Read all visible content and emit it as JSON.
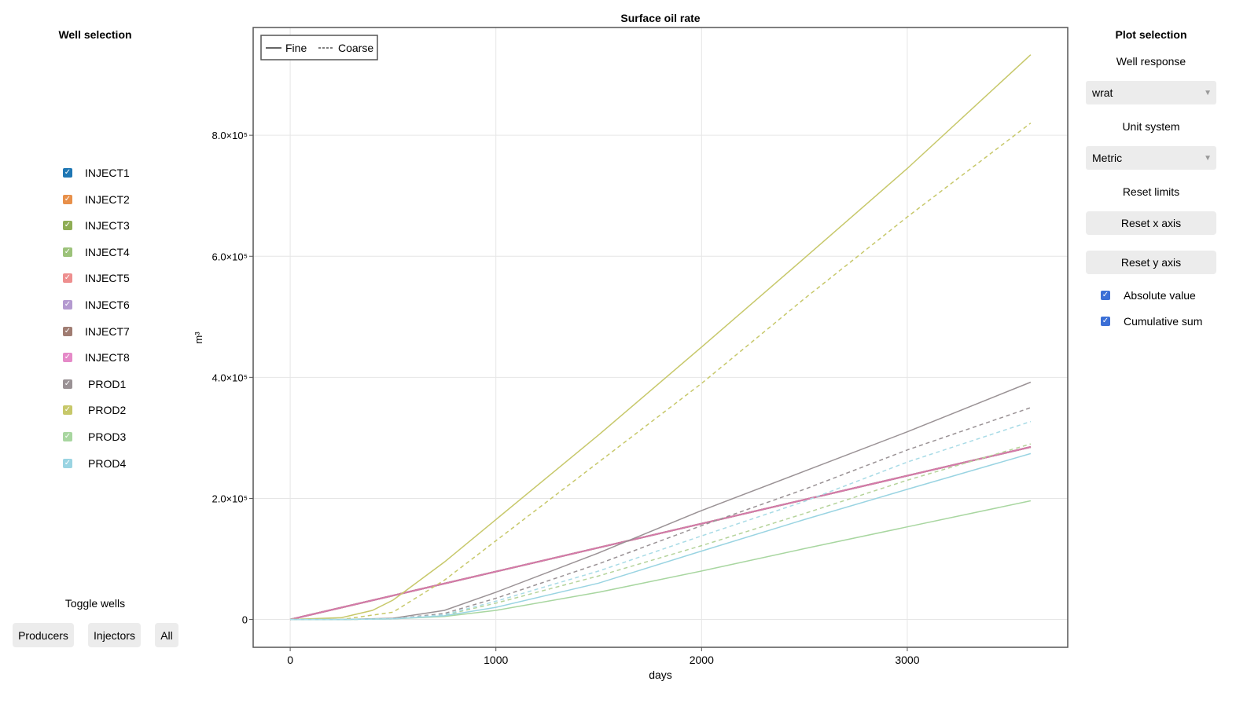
{
  "left_panel": {
    "title": "Well selection",
    "wells": [
      {
        "label": "INJECT1",
        "color": "#1f77b4",
        "checked": true
      },
      {
        "label": "INJECT2",
        "color": "#e8904a",
        "checked": true
      },
      {
        "label": "INJECT3",
        "color": "#8fad55",
        "checked": true
      },
      {
        "label": "INJECT4",
        "color": "#9cc27a",
        "checked": true
      },
      {
        "label": "INJECT5",
        "color": "#ee8f8f",
        "checked": true
      },
      {
        "label": "INJECT6",
        "color": "#b49ad0",
        "checked": true
      },
      {
        "label": "INJECT7",
        "color": "#a07c72",
        "checked": true
      },
      {
        "label": "INJECT8",
        "color": "#e58ac8",
        "checked": true
      },
      {
        "label": "PROD1",
        "color": "#9a9295",
        "checked": true
      },
      {
        "label": "PROD2",
        "color": "#c7c86a",
        "checked": true
      },
      {
        "label": "PROD3",
        "color": "#a8d6a0",
        "checked": true
      },
      {
        "label": "PROD4",
        "color": "#9ad4e2",
        "checked": true
      }
    ],
    "toggle_title": "Toggle wells",
    "buttons": [
      "Producers",
      "Injectors",
      "All"
    ]
  },
  "right_panel": {
    "title": "Plot selection",
    "well_response_label": "Well response",
    "well_response_value": "wrat",
    "unit_system_label": "Unit system",
    "unit_system_value": "Metric",
    "reset_limits_label": "Reset limits",
    "reset_x": "Reset x axis",
    "reset_y": "Reset y axis",
    "absolute_value": {
      "label": "Absolute value",
      "checked": true
    },
    "cumulative_sum": {
      "label": "Cumulative sum",
      "checked": true
    }
  },
  "chart_data": {
    "type": "line",
    "title": "Surface oil rate",
    "xlabel": "days",
    "ylabel": "m³",
    "xlim": [
      -180,
      3780
    ],
    "ylim": [
      -46000,
      978000
    ],
    "xticks": [
      0,
      1000,
      2000,
      3000
    ],
    "xtick_labels": [
      "0",
      "1000",
      "2000",
      "3000"
    ],
    "yticks": [
      0,
      200000,
      400000,
      600000,
      800000
    ],
    "ytick_labels": [
      "0",
      "2.0×10⁵",
      "4.0×10⁵",
      "6.0×10⁵",
      "8.0×10⁵"
    ],
    "grid": true,
    "legend": {
      "placement": "top-left",
      "entries": [
        {
          "label": "Fine",
          "style": "solid"
        },
        {
          "label": "Coarse",
          "style": "dashed"
        }
      ]
    },
    "series": [
      {
        "well": "INJECT1",
        "style": "solid",
        "color": "#1f77b4",
        "points": [
          [
            0,
            0
          ],
          [
            3600,
            285000
          ]
        ]
      },
      {
        "well": "INJECT2",
        "style": "solid",
        "color": "#e8904a",
        "points": [
          [
            0,
            0
          ],
          [
            3600,
            285000
          ]
        ]
      },
      {
        "well": "INJECT3",
        "style": "solid",
        "color": "#8fad55",
        "points": [
          [
            0,
            0
          ],
          [
            3600,
            285000
          ]
        ]
      },
      {
        "well": "INJECT4",
        "style": "solid",
        "color": "#9cc27a",
        "points": [
          [
            0,
            0
          ],
          [
            3600,
            285000
          ]
        ]
      },
      {
        "well": "INJECT5",
        "style": "solid",
        "color": "#ee8f8f",
        "points": [
          [
            0,
            0
          ],
          [
            3600,
            285000
          ]
        ]
      },
      {
        "well": "INJECT6",
        "style": "solid",
        "color": "#b49ad0",
        "points": [
          [
            0,
            0
          ],
          [
            3600,
            285000
          ]
        ]
      },
      {
        "well": "INJECT7",
        "style": "solid",
        "color": "#a07c72",
        "points": [
          [
            0,
            0
          ],
          [
            3600,
            285000
          ]
        ]
      },
      {
        "well": "INJECT8",
        "style": "solid",
        "color": "#d57aaa",
        "points": [
          [
            0,
            0
          ],
          [
            3600,
            285000
          ]
        ]
      },
      {
        "well": "PROD1",
        "style": "solid",
        "color": "#9a9295",
        "points": [
          [
            0,
            0
          ],
          [
            250,
            0
          ],
          [
            500,
            2000
          ],
          [
            750,
            15000
          ],
          [
            1000,
            45000
          ],
          [
            1500,
            110000
          ],
          [
            2000,
            180000
          ],
          [
            2500,
            245000
          ],
          [
            3000,
            310000
          ],
          [
            3600,
            392000
          ]
        ]
      },
      {
        "well": "PROD1",
        "style": "dashed",
        "color": "#9a9295",
        "points": [
          [
            0,
            0
          ],
          [
            250,
            0
          ],
          [
            500,
            1000
          ],
          [
            750,
            10000
          ],
          [
            1000,
            35000
          ],
          [
            1500,
            92000
          ],
          [
            2000,
            155000
          ],
          [
            2500,
            215000
          ],
          [
            3000,
            280000
          ],
          [
            3600,
            350000
          ]
        ]
      },
      {
        "well": "PROD2",
        "style": "solid",
        "color": "#c7c86a",
        "points": [
          [
            0,
            0
          ],
          [
            250,
            3000
          ],
          [
            400,
            15000
          ],
          [
            500,
            32000
          ],
          [
            750,
            95000
          ],
          [
            1000,
            165000
          ],
          [
            1500,
            305000
          ],
          [
            2000,
            450000
          ],
          [
            2500,
            597000
          ],
          [
            3000,
            745000
          ],
          [
            3600,
            933000
          ]
        ]
      },
      {
        "well": "PROD2",
        "style": "dashed",
        "color": "#c7c86a",
        "points": [
          [
            0,
            0
          ],
          [
            250,
            0
          ],
          [
            500,
            12000
          ],
          [
            750,
            65000
          ],
          [
            1000,
            130000
          ],
          [
            1500,
            260000
          ],
          [
            2000,
            390000
          ],
          [
            2500,
            530000
          ],
          [
            3000,
            665000
          ],
          [
            3600,
            820000
          ]
        ]
      },
      {
        "well": "PROD3",
        "style": "solid",
        "color": "#a8d6a0",
        "points": [
          [
            0,
            0
          ],
          [
            250,
            0
          ],
          [
            500,
            1000
          ],
          [
            750,
            5000
          ],
          [
            1000,
            15000
          ],
          [
            1500,
            45000
          ],
          [
            2000,
            80000
          ],
          [
            2500,
            117000
          ],
          [
            3000,
            153000
          ],
          [
            3600,
            196000
          ]
        ]
      },
      {
        "well": "PROD3",
        "style": "dashed",
        "color": "#b5d39a",
        "points": [
          [
            0,
            0
          ],
          [
            250,
            0
          ],
          [
            500,
            1000
          ],
          [
            750,
            7000
          ],
          [
            1000,
            27000
          ],
          [
            1500,
            72000
          ],
          [
            2000,
            122000
          ],
          [
            2500,
            175000
          ],
          [
            3000,
            230000
          ],
          [
            3600,
            290000
          ]
        ]
      },
      {
        "well": "PROD4",
        "style": "solid",
        "color": "#9ad4e2",
        "points": [
          [
            0,
            0
          ],
          [
            250,
            0
          ],
          [
            500,
            1000
          ],
          [
            750,
            6000
          ],
          [
            1000,
            20000
          ],
          [
            1500,
            60000
          ],
          [
            2000,
            113000
          ],
          [
            2500,
            165000
          ],
          [
            3000,
            215000
          ],
          [
            3600,
            274000
          ]
        ]
      },
      {
        "well": "PROD4",
        "style": "dashed",
        "color": "#a8dbe6",
        "points": [
          [
            0,
            0
          ],
          [
            250,
            0
          ],
          [
            500,
            1000
          ],
          [
            750,
            8000
          ],
          [
            1000,
            30000
          ],
          [
            1500,
            80000
          ],
          [
            2000,
            138000
          ],
          [
            2500,
            195000
          ],
          [
            3000,
            260000
          ],
          [
            3600,
            327000
          ]
        ]
      }
    ]
  }
}
